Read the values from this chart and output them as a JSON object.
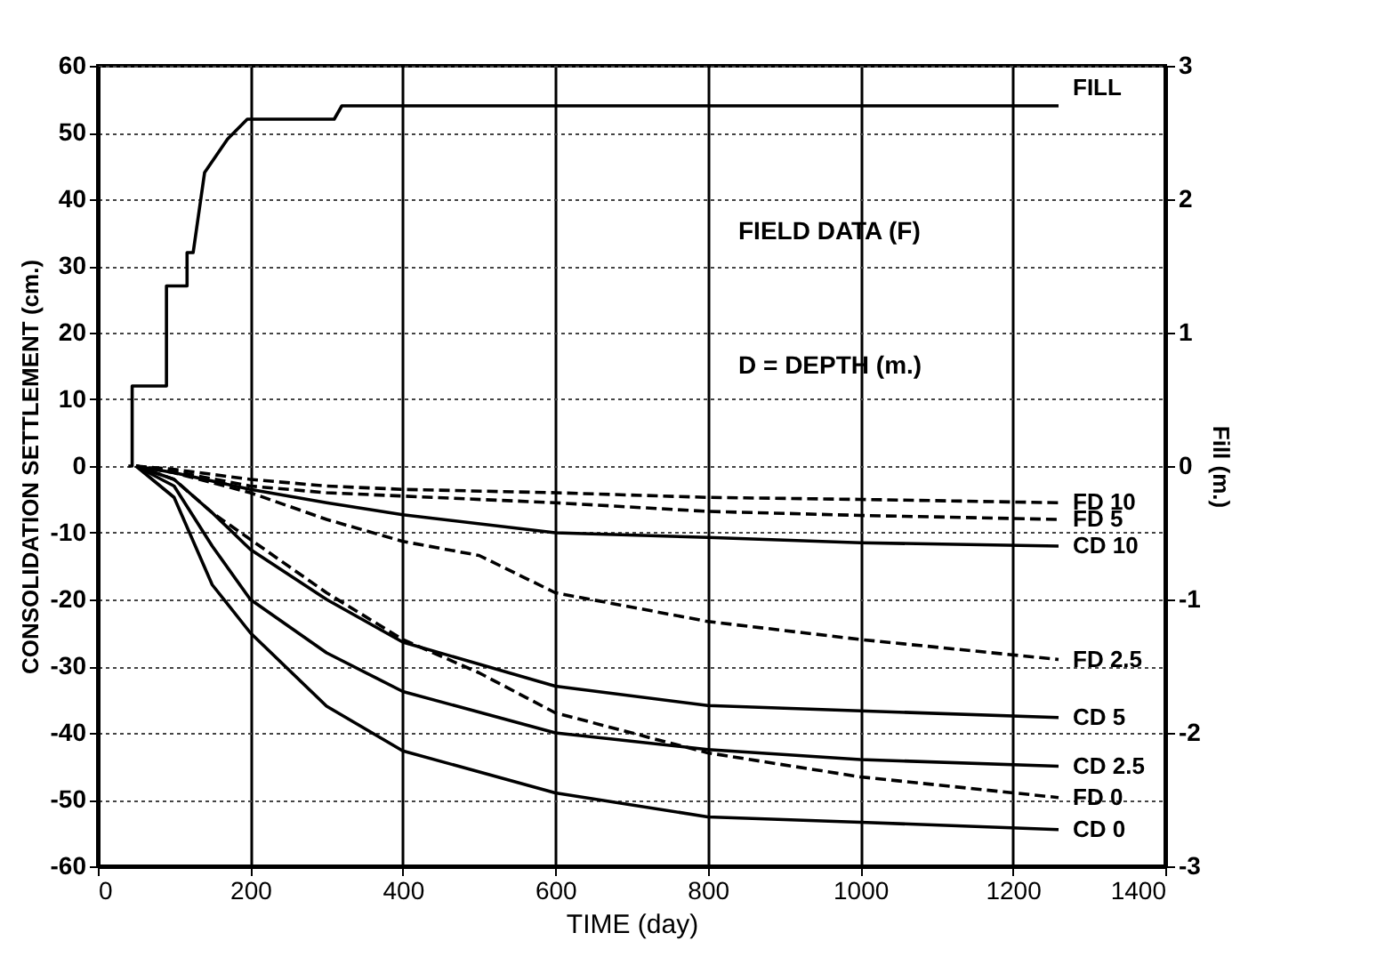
{
  "chart_data": {
    "type": "line",
    "xlabel": "TIME (day)",
    "ylabel": "CONSOLIDATION SETTLEMENT (cm.)",
    "y2label": "Fill (m.)",
    "xlim": [
      0,
      1400
    ],
    "xticks": [
      0,
      200,
      400,
      600,
      800,
      1000,
      1200,
      1400
    ],
    "ylim": [
      -60,
      60
    ],
    "yticks": [
      -60,
      -50,
      -40,
      -30,
      -20,
      -10,
      0,
      10,
      20,
      30,
      40,
      50,
      60
    ],
    "y2lim": [
      -3,
      3
    ],
    "y2ticks": [
      -3,
      -2,
      -1,
      0,
      1,
      2,
      3
    ],
    "grid": true,
    "annotations": [
      "FIELD DATA (F)",
      "D = DEPTH (m.)"
    ],
    "series": [
      {
        "name": "FILL",
        "color": "#000000",
        "line_style": "solid",
        "axis": "y2",
        "x": [
          40,
          45,
          45,
          90,
          90,
          117,
          117,
          125,
          140,
          170,
          196,
          310,
          320,
          1260
        ],
        "values": [
          0,
          0,
          0.6,
          0.6,
          1.35,
          1.35,
          1.6,
          1.6,
          2.2,
          2.45,
          2.6,
          2.6,
          2.7,
          2.7
        ]
      },
      {
        "name": "FD 10",
        "color": "#000000",
        "line_style": "dashed",
        "x": [
          50,
          100,
          200,
          300,
          400,
          600,
          800,
          1000,
          1260
        ],
        "values": [
          0,
          -0.5,
          -2,
          -3,
          -3.5,
          -4,
          -4.7,
          -5,
          -5.5
        ]
      },
      {
        "name": "FD 5",
        "color": "#000000",
        "line_style": "dashed",
        "x": [
          50,
          100,
          200,
          300,
          400,
          600,
          800,
          1000,
          1260
        ],
        "values": [
          0,
          -0.8,
          -3,
          -4,
          -4.5,
          -5.5,
          -6.8,
          -7.4,
          -8
        ]
      },
      {
        "name": "CD 10",
        "color": "#000000",
        "line_style": "solid",
        "x": [
          50,
          100,
          200,
          300,
          400,
          600,
          800,
          1000,
          1260
        ],
        "values": [
          0,
          -1,
          -3.5,
          -5.5,
          -7.3,
          -10,
          -10.7,
          -11.5,
          -12
        ]
      },
      {
        "name": "FD 2.5",
        "color": "#000000",
        "line_style": "dashed",
        "x": [
          50,
          100,
          200,
          300,
          400,
          500,
          600,
          800,
          1000,
          1260
        ],
        "values": [
          0,
          -1,
          -4,
          -8,
          -11.3,
          -13.4,
          -19,
          -23.3,
          -26,
          -29
        ]
      },
      {
        "name": "CD 5",
        "color": "#000000",
        "line_style": "solid",
        "x": [
          50,
          100,
          150,
          200,
          300,
          400,
          600,
          800,
          1000,
          1260
        ],
        "values": [
          0,
          -2,
          -7,
          -12.5,
          -20,
          -26.4,
          -33,
          -35.9,
          -36.7,
          -37.7
        ]
      },
      {
        "name": "CD 2.5",
        "color": "#000000",
        "line_style": "solid",
        "x": [
          50,
          100,
          150,
          200,
          300,
          400,
          600,
          800,
          1000,
          1260
        ],
        "values": [
          0,
          -3,
          -12,
          -20,
          -28,
          -33.8,
          -40,
          -42.5,
          -44,
          -45
        ]
      },
      {
        "name": "FD 0",
        "color": "#000000",
        "line_style": "dashed",
        "x": [
          50,
          100,
          150,
          200,
          300,
          400,
          500,
          600,
          800,
          1000,
          1260
        ],
        "values": [
          0,
          -2,
          -7,
          -11,
          -19,
          -26,
          -31,
          -37,
          -43,
          -46.6,
          -49.7
        ]
      },
      {
        "name": "CD 0",
        "color": "#000000",
        "line_style": "solid",
        "x": [
          50,
          100,
          150,
          200,
          300,
          400,
          600,
          800,
          1000,
          1260
        ],
        "values": [
          0,
          -4.7,
          -17.8,
          -25,
          -36,
          -42.7,
          -49,
          -52.6,
          -53.4,
          -54.5
        ]
      }
    ]
  }
}
